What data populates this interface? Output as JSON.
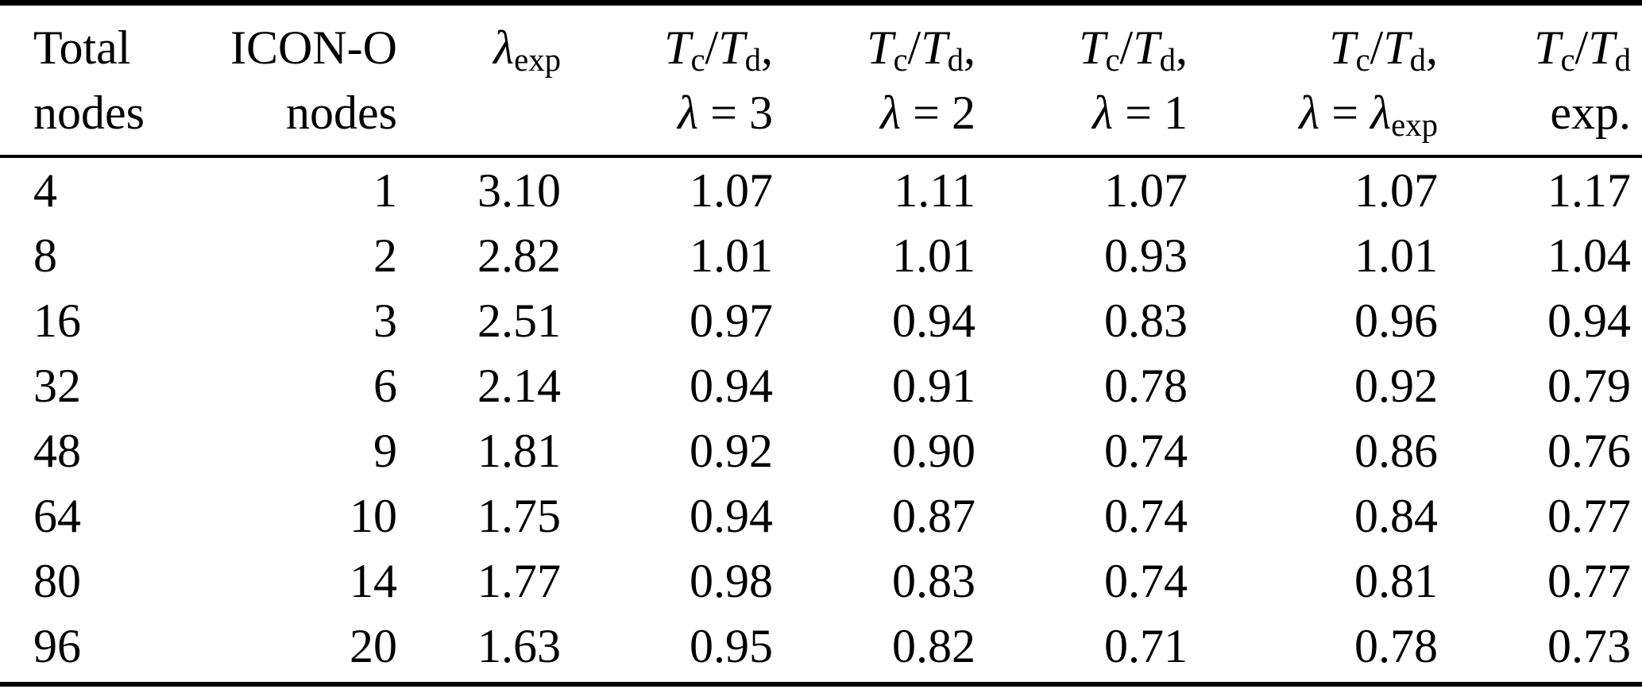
{
  "table": {
    "columns": [
      {
        "id": "total-nodes",
        "h1": [
          {
            "t": "Total"
          }
        ],
        "h2": [
          {
            "t": "nodes"
          }
        ]
      },
      {
        "id": "icon-o-nodes",
        "h1": [
          {
            "t": "ICON-O"
          }
        ],
        "h2": [
          {
            "t": "nodes"
          }
        ]
      },
      {
        "id": "lambda-exp",
        "h1": [
          {
            "t": "λ",
            "i": 1
          },
          {
            "t": "exp",
            "sub": 1
          }
        ],
        "h2": []
      },
      {
        "id": "tc-td-lambda-3",
        "h1": [
          {
            "t": "T",
            "i": 1
          },
          {
            "t": "c",
            "sub": 1
          },
          {
            "t": "/"
          },
          {
            "t": "T",
            "i": 1
          },
          {
            "t": "d",
            "sub": 1
          },
          {
            "t": ","
          }
        ],
        "h2": [
          {
            "t": "λ",
            "i": 1
          },
          {
            "t": " = 3"
          }
        ]
      },
      {
        "id": "tc-td-lambda-2",
        "h1": [
          {
            "t": "T",
            "i": 1
          },
          {
            "t": "c",
            "sub": 1
          },
          {
            "t": "/"
          },
          {
            "t": "T",
            "i": 1
          },
          {
            "t": "d",
            "sub": 1
          },
          {
            "t": ","
          }
        ],
        "h2": [
          {
            "t": "λ",
            "i": 1
          },
          {
            "t": " = 2"
          }
        ]
      },
      {
        "id": "tc-td-lambda-1",
        "h1": [
          {
            "t": "T",
            "i": 1
          },
          {
            "t": "c",
            "sub": 1
          },
          {
            "t": "/"
          },
          {
            "t": "T",
            "i": 1
          },
          {
            "t": "d",
            "sub": 1
          },
          {
            "t": ","
          }
        ],
        "h2": [
          {
            "t": "λ",
            "i": 1
          },
          {
            "t": " = 1"
          }
        ]
      },
      {
        "id": "tc-td-lambda-exp",
        "h1": [
          {
            "t": "T",
            "i": 1
          },
          {
            "t": "c",
            "sub": 1
          },
          {
            "t": "/"
          },
          {
            "t": "T",
            "i": 1
          },
          {
            "t": "d",
            "sub": 1
          },
          {
            "t": ","
          }
        ],
        "h2": [
          {
            "t": "λ",
            "i": 1
          },
          {
            "t": " = "
          },
          {
            "t": "λ",
            "i": 1
          },
          {
            "t": "exp",
            "sub": 1
          }
        ]
      },
      {
        "id": "tc-td-experiment",
        "h1": [
          {
            "t": "T",
            "i": 1
          },
          {
            "t": "c",
            "sub": 1
          },
          {
            "t": "/"
          },
          {
            "t": "T",
            "i": 1
          },
          {
            "t": "d",
            "sub": 1
          }
        ],
        "h2": [
          {
            "t": "exp."
          }
        ]
      }
    ],
    "rows": [
      [
        "4",
        "1",
        "3.10",
        "1.07",
        "1.11",
        "1.07",
        "1.07",
        "1.17"
      ],
      [
        "8",
        "2",
        "2.82",
        "1.01",
        "1.01",
        "0.93",
        "1.01",
        "1.04"
      ],
      [
        "16",
        "3",
        "2.51",
        "0.97",
        "0.94",
        "0.83",
        "0.96",
        "0.94"
      ],
      [
        "32",
        "6",
        "2.14",
        "0.94",
        "0.91",
        "0.78",
        "0.92",
        "0.79"
      ],
      [
        "48",
        "9",
        "1.81",
        "0.92",
        "0.90",
        "0.74",
        "0.86",
        "0.76"
      ],
      [
        "64",
        "10",
        "1.75",
        "0.94",
        "0.87",
        "0.74",
        "0.84",
        "0.77"
      ],
      [
        "80",
        "14",
        "1.77",
        "0.98",
        "0.83",
        "0.74",
        "0.81",
        "0.77"
      ],
      [
        "96",
        "20",
        "1.63",
        "0.95",
        "0.82",
        "0.71",
        "0.78",
        "0.73"
      ]
    ]
  },
  "chart_data": {
    "type": "table",
    "columns": [
      "Total nodes",
      "ICON-O nodes",
      "λ_exp",
      "Tc/Td, λ=3",
      "Tc/Td, λ=2",
      "Tc/Td, λ=1",
      "Tc/Td, λ=λ_exp",
      "Tc/Td exp."
    ],
    "rows": [
      [
        4,
        1,
        3.1,
        1.07,
        1.11,
        1.07,
        1.07,
        1.17
      ],
      [
        8,
        2,
        2.82,
        1.01,
        1.01,
        0.93,
        1.01,
        1.04
      ],
      [
        16,
        3,
        2.51,
        0.97,
        0.94,
        0.83,
        0.96,
        0.94
      ],
      [
        32,
        6,
        2.14,
        0.94,
        0.91,
        0.78,
        0.92,
        0.79
      ],
      [
        48,
        9,
        1.81,
        0.92,
        0.9,
        0.74,
        0.86,
        0.76
      ],
      [
        64,
        10,
        1.75,
        0.94,
        0.87,
        0.74,
        0.84,
        0.77
      ],
      [
        80,
        14,
        1.77,
        0.98,
        0.83,
        0.74,
        0.81,
        0.77
      ],
      [
        96,
        20,
        1.63,
        0.95,
        0.82,
        0.71,
        0.78,
        0.73
      ]
    ],
    "colors": {
      "text": "#000000",
      "background": "#ffffff",
      "rules": "#000000"
    }
  }
}
